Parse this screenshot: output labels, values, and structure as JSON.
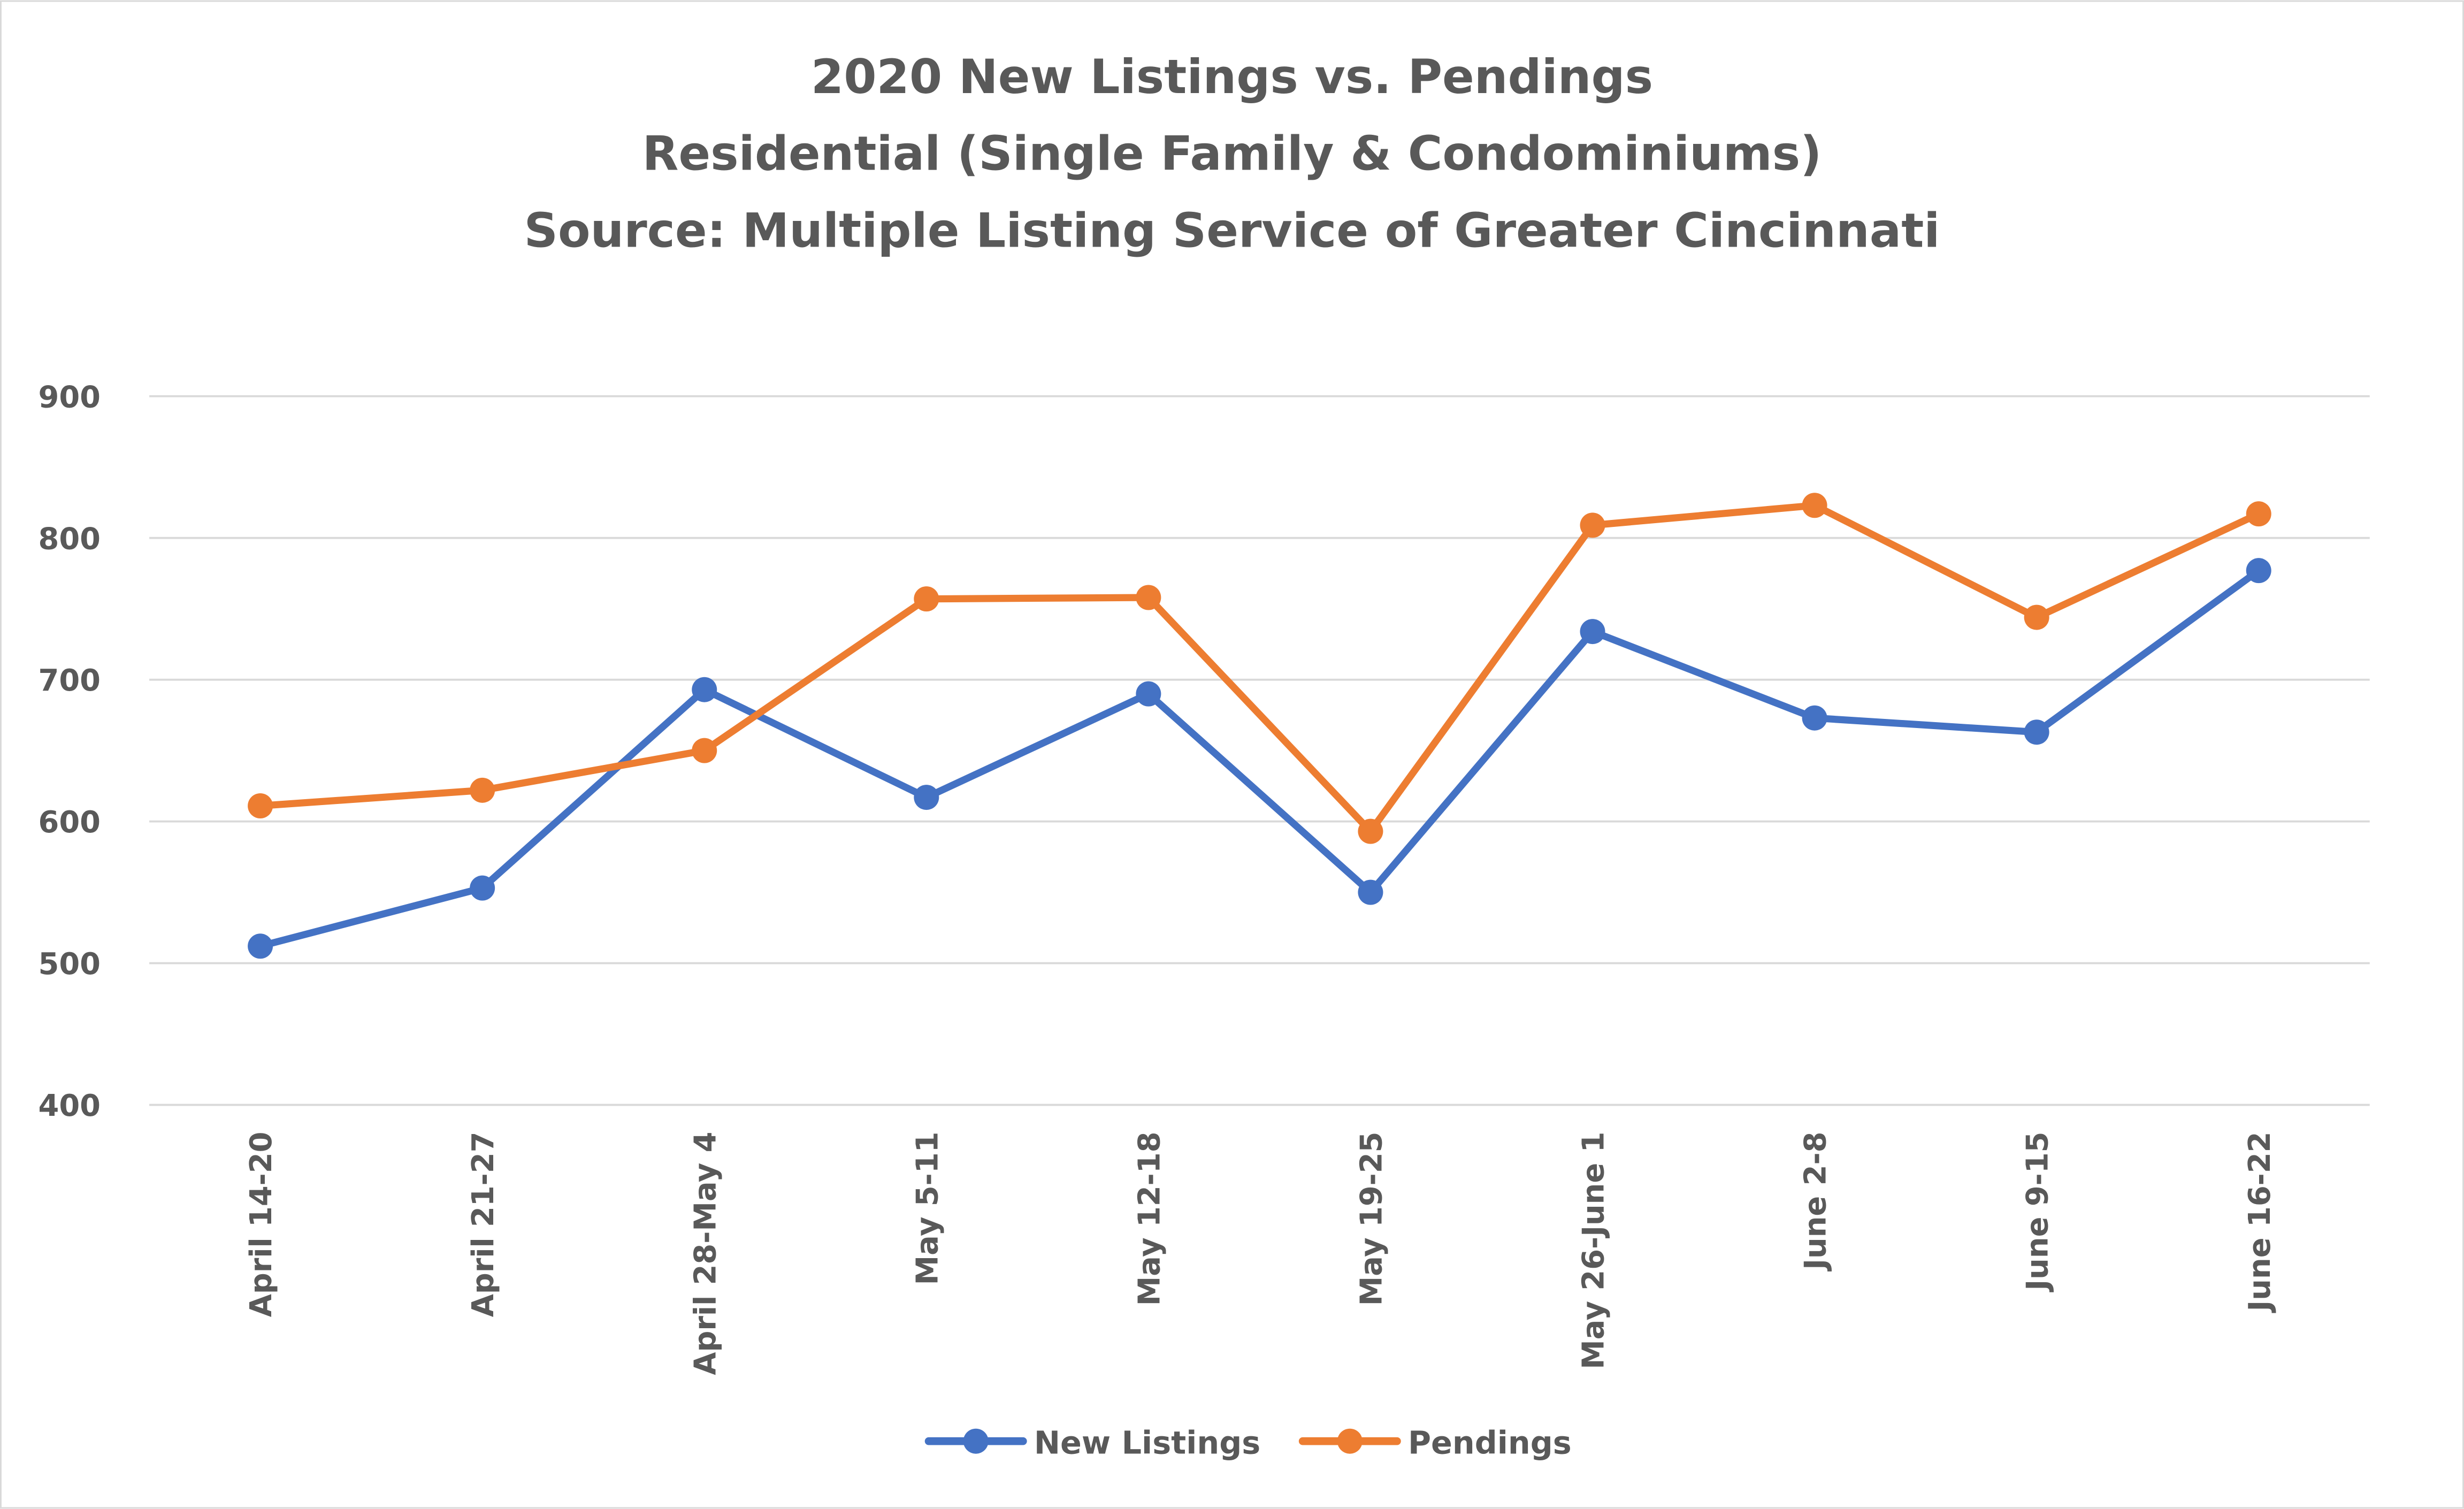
{
  "chart_data": {
    "type": "line",
    "title": [
      "2020 New Listings vs. Pendings",
      "Residential (Single Family & Condominiums)",
      "Source: Multiple Listing Service of Greater Cincinnati"
    ],
    "xlabel": "",
    "ylabel": "",
    "categories": [
      "April 14-20",
      "April 21-27",
      "April 28-May 4",
      "May 5-11",
      "May 12-18",
      "May 19-25",
      "May 26-June 1",
      "June 2-8",
      "June 9-15",
      "June 16-22"
    ],
    "ylim": [
      400,
      900
    ],
    "yticks": [
      400,
      500,
      600,
      700,
      800,
      900
    ],
    "grid": true,
    "legend_position": "bottom",
    "series": [
      {
        "name": "New Listings",
        "color": "#4472C4",
        "values": [
          512,
          553,
          693,
          617,
          690,
          550,
          734,
          673,
          663,
          777
        ]
      },
      {
        "name": "Pendings",
        "color": "#ED7D31",
        "values": [
          611,
          622,
          650,
          757,
          758,
          593,
          809,
          823,
          744,
          817
        ]
      }
    ]
  }
}
